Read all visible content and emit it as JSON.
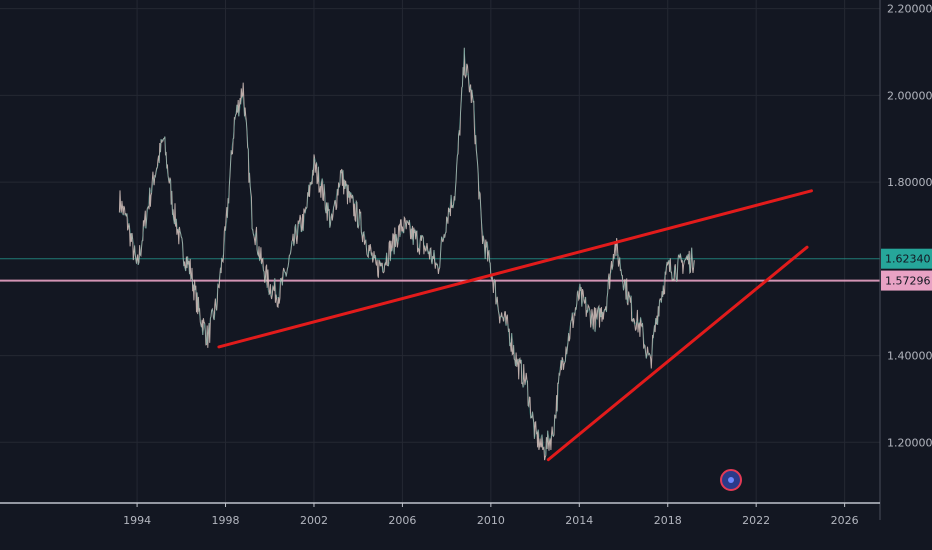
{
  "chart_data": {
    "type": "line",
    "instrument_view": "price chart",
    "x_axis": {
      "tick_labels": [
        "1994",
        "1998",
        "2002",
        "2006",
        "2010",
        "2014",
        "2018",
        "2022",
        "2026"
      ],
      "xlim": [
        1987.8,
        2027.6
      ]
    },
    "y_axis": {
      "tick_labels": [
        "1.20000",
        "1.40000",
        "1.80000",
        "2.00000",
        "2.20000"
      ],
      "ylim": [
        1.06,
        2.22
      ]
    },
    "grid": true,
    "series": [
      {
        "x": [
          1993.2,
          1993.6,
          1994.0,
          1994.4,
          1994.8,
          1995.2,
          1995.6,
          1996.0,
          1996.4,
          1996.8,
          1997.2,
          1997.6,
          1998.0,
          1998.4,
          1998.8,
          1999.2,
          1999.6,
          2000.0,
          2000.4,
          2000.8,
          2001.2,
          2001.6,
          2002.0,
          2002.4,
          2002.8,
          2003.2,
          2003.6,
          2004.0,
          2004.4,
          2004.8,
          2005.2,
          2005.6,
          2006.0,
          2006.4,
          2006.8,
          2007.2,
          2007.6,
          2008.0,
          2008.4,
          2008.8,
          2009.2,
          2009.6,
          2010.0,
          2010.4,
          2010.8,
          2011.2,
          2011.6,
          2012.0,
          2012.4,
          2012.8,
          2013.2,
          2013.6,
          2014.0,
          2014.4,
          2014.8,
          2015.2,
          2015.6,
          2016.0,
          2016.4,
          2016.8,
          2017.2,
          2017.6,
          2018.0,
          2018.4,
          2018.8,
          2019.2
        ],
        "y": [
          1.76,
          1.7,
          1.6,
          1.72,
          1.82,
          1.9,
          1.75,
          1.65,
          1.6,
          1.5,
          1.44,
          1.52,
          1.68,
          1.94,
          2.02,
          1.72,
          1.62,
          1.56,
          1.54,
          1.6,
          1.68,
          1.72,
          1.84,
          1.78,
          1.7,
          1.82,
          1.76,
          1.72,
          1.66,
          1.6,
          1.62,
          1.66,
          1.7,
          1.68,
          1.66,
          1.64,
          1.6,
          1.72,
          1.78,
          2.08,
          1.98,
          1.68,
          1.6,
          1.5,
          1.46,
          1.38,
          1.34,
          1.22,
          1.18,
          1.22,
          1.38,
          1.46,
          1.54,
          1.5,
          1.48,
          1.52,
          1.66,
          1.58,
          1.5,
          1.46,
          1.38,
          1.52,
          1.6,
          1.6,
          1.62,
          1.62
        ]
      }
    ],
    "horizontal_lines": [
      {
        "price": 1.6234,
        "label": "1.62340",
        "color": "#26a69a"
      },
      {
        "price": 1.57296,
        "label": "1.57296",
        "color": "#e8a2c4"
      }
    ],
    "trend_lines": [
      {
        "x": [
          1997.7,
          2024.5
        ],
        "y": [
          1.42,
          1.78
        ],
        "color": "#e21b1b"
      },
      {
        "x": [
          2012.6,
          2024.3
        ],
        "y": [
          1.16,
          1.65
        ],
        "color": "#e21b1b"
      }
    ]
  }
}
